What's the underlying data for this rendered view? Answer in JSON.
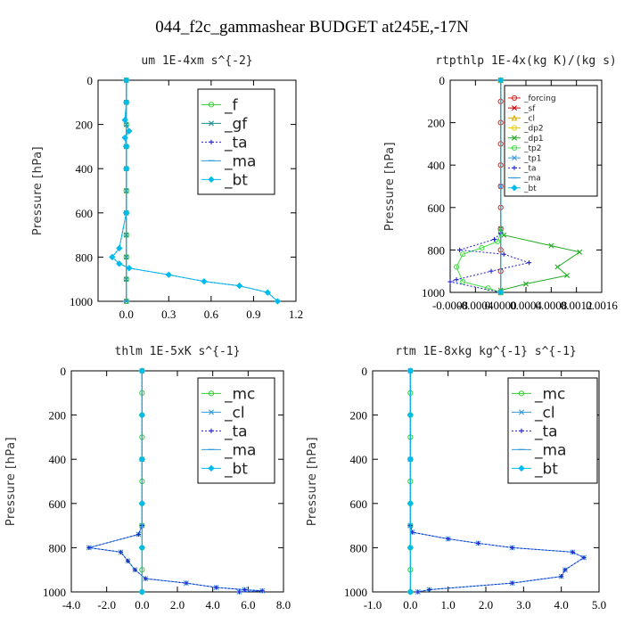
{
  "figure": {
    "title": "044_f2c_gammashear  BUDGET at245E,-17N"
  },
  "chart_data": [
    {
      "id": "p1",
      "type": "line",
      "title": "um   1E-4xm s^{-2}",
      "xlabel": "",
      "ylabel": "Pressure [hPa]",
      "xlim": [
        -0.2,
        1.2
      ],
      "ylim": [
        1000,
        0
      ],
      "xticks": [
        0.0,
        0.3,
        0.6,
        0.9,
        1.2
      ],
      "xtick_labels": [
        "0.0",
        "0.3",
        "0.6",
        "0.9",
        "1.2"
      ],
      "yticks": [
        0,
        200,
        400,
        600,
        800,
        1000
      ],
      "ytick_labels": [
        "0",
        "200",
        "400",
        "600",
        "800",
        "1000"
      ],
      "legend": {
        "position": "top-right",
        "font_size": "large",
        "entries": [
          "_f",
          "_gf",
          "_ta",
          "_ma",
          "_bt"
        ]
      },
      "series": [
        {
          "name": "_f",
          "color": "#33cc33",
          "marker": "circle",
          "x": [
            0,
            0,
            0,
            0,
            0,
            0,
            0,
            0,
            0,
            0,
            0
          ],
          "y": [
            0,
            100,
            200,
            300,
            400,
            500,
            600,
            700,
            800,
            900,
            1000
          ]
        },
        {
          "name": "_gf",
          "color": "#1a8f8f",
          "marker": "x",
          "x": [
            0,
            0,
            0,
            0,
            0,
            0,
            0,
            0,
            0,
            0,
            0
          ],
          "y": [
            0,
            100,
            200,
            300,
            400,
            500,
            600,
            700,
            800,
            900,
            1000
          ]
        },
        {
          "name": "_ta",
          "color": "#2222cc",
          "marker": "plus",
          "dashed": true,
          "x": [
            0,
            0,
            -0.01,
            0.02,
            -0.01,
            0,
            0,
            0,
            -0.05,
            -0.1,
            -0.05,
            0.02,
            0.3,
            0.55,
            0.8,
            1.0,
            1.07
          ],
          "y": [
            0,
            100,
            180,
            230,
            260,
            300,
            400,
            600,
            760,
            800,
            830,
            850,
            880,
            910,
            930,
            960,
            1000
          ]
        },
        {
          "name": "_ma",
          "color": "#3399dd",
          "marker": "dash",
          "x": [
            0,
            0,
            0,
            0
          ],
          "y": [
            0,
            300,
            600,
            1000
          ]
        },
        {
          "name": "_bt",
          "color": "#00bbee",
          "marker": "diamond",
          "x": [
            0,
            0,
            -0.01,
            0.02,
            -0.01,
            0,
            0,
            0,
            -0.05,
            -0.1,
            -0.05,
            0.02,
            0.3,
            0.55,
            0.8,
            1.0,
            1.07
          ],
          "y": [
            0,
            100,
            180,
            230,
            260,
            300,
            400,
            600,
            760,
            800,
            830,
            850,
            880,
            910,
            930,
            960,
            1000
          ]
        }
      ]
    },
    {
      "id": "p2",
      "type": "line",
      "title": "rtpthlp   1E-4x(kg K)/(kg s)",
      "xlabel": "",
      "ylabel": "Pressure [hPa]",
      "xlim": [
        -0.0008,
        0.0016
      ],
      "ylim": [
        1000,
        0
      ],
      "xticks": [
        -0.0008,
        -0.0004,
        0.0,
        0.0004,
        0.0008,
        0.0012,
        0.0016
      ],
      "xtick_labels": [
        "-0.0008",
        "-0.0004",
        "0.0000",
        "0.0004",
        "0.0008",
        "0.0012",
        "0.0016"
      ],
      "yticks": [
        0,
        200,
        400,
        600,
        800,
        1000
      ],
      "ytick_labels": [
        "0",
        "200",
        "400",
        "600",
        "800",
        "1000"
      ],
      "legend": {
        "position": "top-right",
        "font_size": "small",
        "entries": [
          "_forcing",
          "_sf",
          "_cl",
          "_dp2",
          "_dp1",
          "_tp2",
          "_tp1",
          "_ta",
          "_ma",
          "_bt"
        ]
      },
      "series": [
        {
          "name": "_forcing",
          "color": "#dd2222",
          "marker": "circle",
          "x": [
            0,
            0,
            0,
            0,
            0,
            0,
            0,
            0,
            0,
            0,
            0
          ],
          "y": [
            0,
            100,
            200,
            300,
            400,
            500,
            600,
            700,
            800,
            900,
            1000
          ]
        },
        {
          "name": "_sf",
          "color": "#cc0000",
          "marker": "x",
          "x": [
            0,
            0
          ],
          "y": [
            0,
            1000
          ]
        },
        {
          "name": "_cl",
          "color": "#ddaa00",
          "marker": "triangle",
          "x": [
            0,
            0
          ],
          "y": [
            0,
            1000
          ]
        },
        {
          "name": "_dp2",
          "color": "#eecc00",
          "marker": "circle",
          "x": [
            0,
            0
          ],
          "y": [
            0,
            1000
          ]
        },
        {
          "name": "_dp1",
          "color": "#22aa22",
          "marker": "x",
          "x": [
            0,
            0,
            5e-05,
            0.0008,
            0.00125,
            0.0009,
            0.00105,
            0.0004,
            0,
            0
          ],
          "y": [
            0,
            700,
            730,
            780,
            810,
            880,
            920,
            960,
            990,
            1000
          ]
        },
        {
          "name": "_tp2",
          "color": "#44dd44",
          "marker": "circle",
          "x": [
            0,
            0,
            -5e-05,
            -0.0003,
            -0.0006,
            -0.0007,
            -0.0006,
            -0.0002,
            0
          ],
          "y": [
            0,
            720,
            760,
            790,
            820,
            880,
            950,
            980,
            1000
          ]
        },
        {
          "name": "_tp1",
          "color": "#3399dd",
          "marker": "x",
          "x": [
            0,
            0,
            0
          ],
          "y": [
            0,
            500,
            1000
          ]
        },
        {
          "name": "_ta",
          "color": "#2222cc",
          "marker": "plus",
          "dashed": true,
          "x": [
            0,
            0,
            -0.0001,
            -0.00065,
            5e-05,
            0.00045,
            -0.00015,
            -0.0007,
            -0.0008,
            0
          ],
          "y": [
            0,
            720,
            750,
            800,
            820,
            860,
            900,
            940,
            950,
            1000
          ]
        },
        {
          "name": "_ma",
          "color": "#3399dd",
          "marker": "dash",
          "x": [
            0,
            0
          ],
          "y": [
            0,
            1000
          ]
        },
        {
          "name": "_bt",
          "color": "#00bbee",
          "marker": "diamond",
          "x": [
            0,
            0
          ],
          "y": [
            0,
            1000
          ]
        }
      ]
    },
    {
      "id": "p3",
      "type": "line",
      "title": "thlm   1E-5xK s^{-1}",
      "xlabel": "",
      "ylabel": "Pressure [hPa]",
      "xlim": [
        -4.0,
        8.0
      ],
      "ylim": [
        1000,
        0
      ],
      "xticks": [
        -4.0,
        -2.0,
        0.0,
        2.0,
        4.0,
        6.0,
        8.0
      ],
      "xtick_labels": [
        "-4.0",
        "-2.0",
        "0.0",
        "2.0",
        "4.0",
        "6.0",
        "8.0"
      ],
      "yticks": [
        0,
        200,
        400,
        600,
        800,
        1000
      ],
      "ytick_labels": [
        "0",
        "200",
        "400",
        "600",
        "800",
        "1000"
      ],
      "legend": {
        "position": "top-right",
        "font_size": "large",
        "entries": [
          "_mc",
          "_cl",
          "_ta",
          "_ma",
          "_bt"
        ]
      },
      "series": [
        {
          "name": "_mc",
          "color": "#33cc33",
          "marker": "circle",
          "x": [
            0,
            0,
            0,
            0,
            0,
            0,
            0,
            0,
            0,
            0,
            0
          ],
          "y": [
            0,
            100,
            200,
            300,
            400,
            500,
            600,
            700,
            800,
            900,
            1000
          ]
        },
        {
          "name": "_cl",
          "color": "#3399dd",
          "marker": "x",
          "x": [
            0,
            0,
            0,
            -0.2,
            -3.0,
            -1.2,
            -0.8,
            -0.4,
            0.2,
            2.5,
            4.2,
            5.8,
            6.8,
            5.5
          ],
          "y": [
            0,
            400,
            700,
            740,
            800,
            820,
            860,
            900,
            940,
            960,
            980,
            990,
            995,
            1000
          ]
        },
        {
          "name": "_ta",
          "color": "#2222cc",
          "marker": "plus",
          "dashed": true,
          "x": [
            0,
            0,
            0,
            -0.2,
            -3.0,
            -1.2,
            -0.8,
            -0.4,
            0.2,
            2.5,
            4.2,
            5.8,
            6.8,
            5.5
          ],
          "y": [
            0,
            400,
            700,
            740,
            800,
            820,
            860,
            900,
            940,
            960,
            980,
            990,
            995,
            1000
          ]
        },
        {
          "name": "_ma",
          "color": "#3399dd",
          "marker": "dash",
          "x": [
            0,
            0
          ],
          "y": [
            0,
            1000
          ]
        },
        {
          "name": "_bt",
          "color": "#00bbee",
          "marker": "diamond",
          "x": [
            0,
            0,
            0,
            0,
            0,
            0
          ],
          "y": [
            0,
            200,
            400,
            600,
            800,
            1000
          ]
        }
      ]
    },
    {
      "id": "p4",
      "type": "line",
      "title": "rtm   1E-8xkg kg^{-1} s^{-1}",
      "xlabel": "",
      "ylabel": "Pressure [hPa]",
      "xlim": [
        -1.0,
        5.0
      ],
      "ylim": [
        1000,
        0
      ],
      "xticks": [
        -1.0,
        0.0,
        1.0,
        2.0,
        3.0,
        4.0,
        5.0
      ],
      "xtick_labels": [
        "-1.0",
        "0.0",
        "1.0",
        "2.0",
        "3.0",
        "4.0",
        "5.0"
      ],
      "yticks": [
        0,
        200,
        400,
        600,
        800,
        1000
      ],
      "ytick_labels": [
        "0",
        "200",
        "400",
        "600",
        "800",
        "1000"
      ],
      "legend": {
        "position": "top-right",
        "font_size": "large",
        "entries": [
          "_mc",
          "_cl",
          "_ta",
          "_ma",
          "_bt"
        ]
      },
      "series": [
        {
          "name": "_mc",
          "color": "#33cc33",
          "marker": "circle",
          "x": [
            0,
            0,
            0,
            0,
            0,
            0,
            0,
            0,
            0,
            0,
            0
          ],
          "y": [
            0,
            100,
            200,
            300,
            400,
            500,
            600,
            700,
            800,
            900,
            1000
          ]
        },
        {
          "name": "_cl",
          "color": "#3399dd",
          "marker": "x",
          "x": [
            0,
            0,
            0,
            0.05,
            1.0,
            1.8,
            2.7,
            4.3,
            4.6,
            4.1,
            4.0,
            2.7,
            0.5,
            0.2
          ],
          "y": [
            0,
            400,
            700,
            730,
            760,
            780,
            800,
            820,
            845,
            900,
            930,
            960,
            990,
            1000
          ]
        },
        {
          "name": "_ta",
          "color": "#2222cc",
          "marker": "plus",
          "dashed": true,
          "x": [
            0,
            0,
            0,
            0.05,
            1.0,
            1.8,
            2.7,
            4.3,
            4.6,
            4.1,
            4.0,
            2.7,
            0.5,
            0.2
          ],
          "y": [
            0,
            400,
            700,
            730,
            760,
            780,
            800,
            820,
            845,
            900,
            930,
            960,
            990,
            1000
          ]
        },
        {
          "name": "_ma",
          "color": "#3399dd",
          "marker": "dash",
          "x": [
            0,
            0
          ],
          "y": [
            0,
            1000
          ]
        },
        {
          "name": "_bt",
          "color": "#00bbee",
          "marker": "diamond",
          "x": [
            0,
            0,
            0,
            0,
            0,
            0
          ],
          "y": [
            0,
            200,
            400,
            600,
            800,
            1000
          ]
        }
      ]
    }
  ]
}
